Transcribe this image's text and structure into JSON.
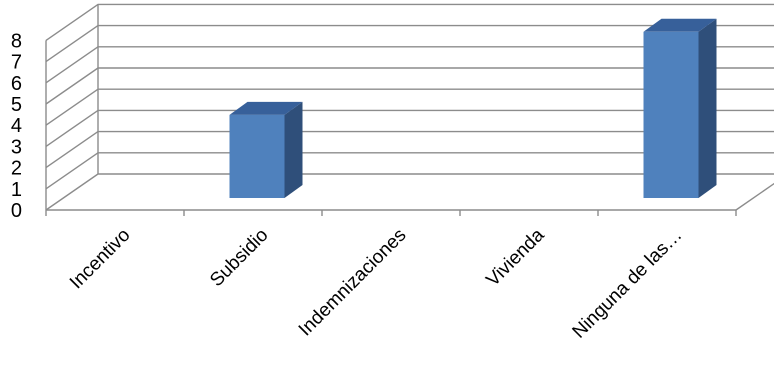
{
  "chart_data": {
    "type": "bar",
    "style": "3d-column",
    "categories": [
      "Incentivo",
      "Subsidio",
      "Indemnizaciones",
      "Vivienda",
      "Ninguna de las…"
    ],
    "values": [
      0,
      4,
      0,
      0,
      8
    ],
    "y_ticks": [
      "0",
      "1",
      "2",
      "3",
      "4",
      "5",
      "6",
      "7",
      "8"
    ],
    "ylim": [
      0,
      8
    ],
    "grid": true,
    "legend": "none",
    "colors": {
      "bar_front": "#4f81bd",
      "bar_side": "#2f4f7a",
      "bar_top": "#37609a",
      "grid": "#8c8c8c",
      "text": "#000000"
    }
  }
}
